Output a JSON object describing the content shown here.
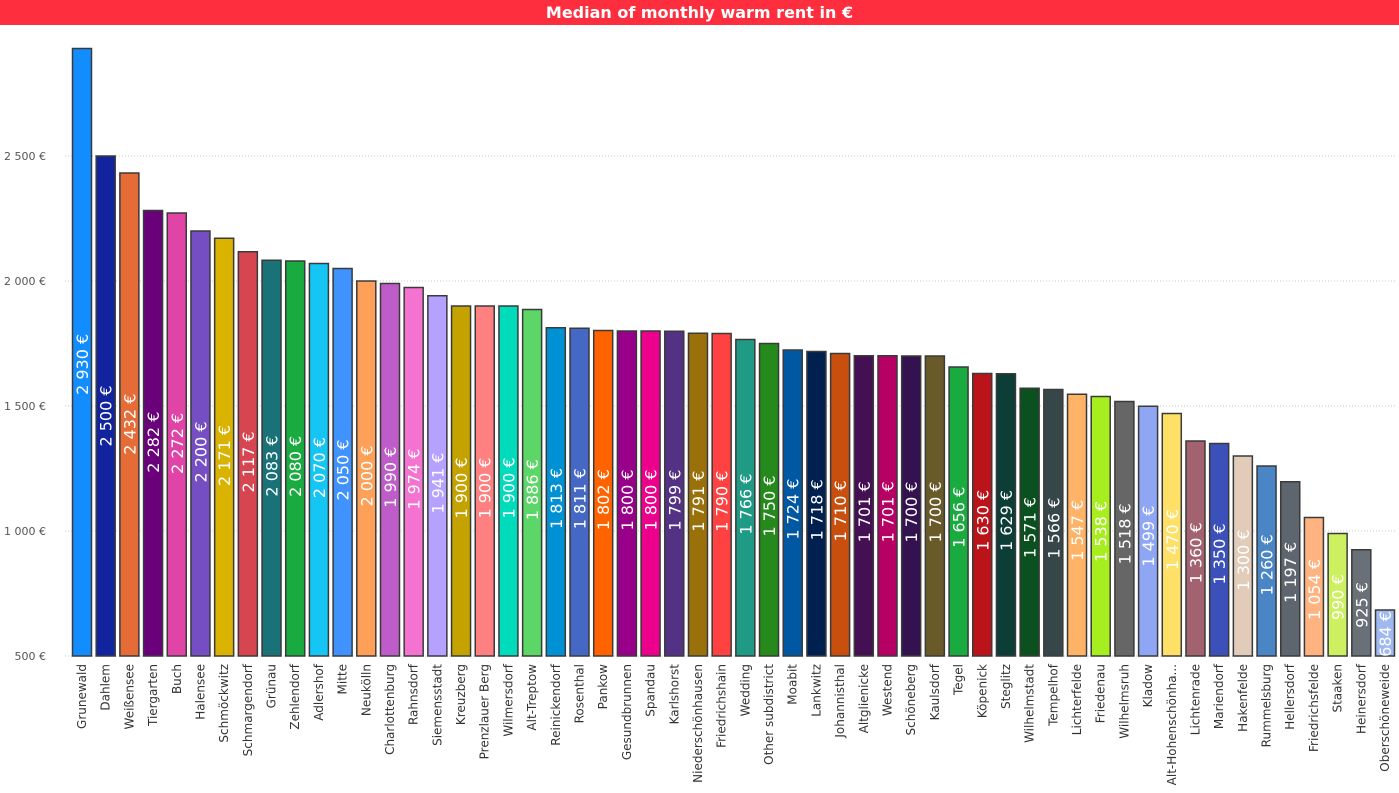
{
  "header": {
    "title": "Median of monthly warm rent in €"
  },
  "chart_data": {
    "type": "bar",
    "title": "Median of monthly warm rent in €",
    "xlabel": "",
    "ylabel": "",
    "ylim": [
      500,
      2980
    ],
    "yticks": [
      500,
      1000,
      1500,
      2000,
      2500
    ],
    "ytick_labels": [
      "500 €",
      "1 000 €",
      "1 500 €",
      "2 000 €",
      "2 500 €"
    ],
    "grid": true,
    "categories": [
      "Grunewald",
      "Dahlem",
      "Weißensee",
      "Tiergarten",
      "Buch",
      "Halensee",
      "Schmöckwitz",
      "Schmargendorf",
      "Grünau",
      "Zehlendorf",
      "Adlershof",
      "Mitte",
      "Neukölln",
      "Charlottenburg",
      "Rahnsdorf",
      "Siemensstadt",
      "Kreuzberg",
      "Prenzlauer Berg",
      "Wilmersdorf",
      "Alt-Treptow",
      "Reinickendorf",
      "Rosenthal",
      "Pankow",
      "Gesundbrunnen",
      "Spandau",
      "Karlshorst",
      "Niederschönhausen",
      "Friedrichshain",
      "Wedding",
      "Other subdistrict",
      "Moabit",
      "Lankwitz",
      "Johannisthal",
      "Altglienicke",
      "Westend",
      "Schöneberg",
      "Kaulsdorf",
      "Tegel",
      "Köpenick",
      "Steglitz",
      "Wilhelmstadt",
      "Tempelhof",
      "Lichterfelde",
      "Friedenau",
      "Wilhelmsruh",
      "Kladow",
      "Alt-Hohenschönha...",
      "Lichtenrade",
      "Mariendorf",
      "Hakenfelde",
      "Rummelsburg",
      "Hellersdorf",
      "Friedrichsfelde",
      "Staaken",
      "Heinersdorf",
      "Oberschöneweide"
    ],
    "values": [
      2930,
      2500,
      2432,
      2282,
      2272,
      2200,
      2171,
      2117,
      2083,
      2080,
      2070,
      2050,
      2000,
      1990,
      1974,
      1941,
      1900,
      1900,
      1900,
      1886,
      1813,
      1811,
      1802,
      1800,
      1800,
      1799,
      1791,
      1790,
      1766,
      1750,
      1724,
      1718,
      1710,
      1701,
      1701,
      1700,
      1700,
      1656,
      1630,
      1629,
      1571,
      1566,
      1547,
      1538,
      1518,
      1499,
      1470,
      1360,
      1350,
      1300,
      1260,
      1197,
      1054,
      990,
      925,
      684
    ],
    "value_labels": [
      "2 930 €",
      "2 500 €",
      "2 432 €",
      "2 282 €",
      "2 272 €",
      "2 200 €",
      "2 171 €",
      "2 117 €",
      "2 083 €",
      "2 080 €",
      "2 070 €",
      "2 050 €",
      "2 000 €",
      "1 990 €",
      "1 974 €",
      "1 941 €",
      "1 900 €",
      "1 900 €",
      "1 900 €",
      "1 886 €",
      "1 813 €",
      "1 811 €",
      "1 802 €",
      "1 800 €",
      "1 800 €",
      "1 799 €",
      "1 791 €",
      "1 790 €",
      "1 766 €",
      "1 750 €",
      "1 724 €",
      "1 718 €",
      "1 710 €",
      "1 701 €",
      "1 701 €",
      "1 700 €",
      "1 700 €",
      "1 656 €",
      "1 630 €",
      "1 629 €",
      "1 571 €",
      "1 566 €",
      "1 547 €",
      "1 538 €",
      "1 518 €",
      "1 499 €",
      "1 470 €",
      "1 360 €",
      "1 350 €",
      "1 300 €",
      "1 260 €",
      "1 197 €",
      "1 054 €",
      "990 €",
      "925 €",
      "684 €"
    ],
    "colors": [
      "#118DFF",
      "#12239E",
      "#E66C37",
      "#6B007B",
      "#E044A7",
      "#744EC2",
      "#D9B300",
      "#D64550",
      "#197278",
      "#1AAB40",
      "#15C6F4",
      "#4092FF",
      "#FFA058",
      "#BE5DC9",
      "#F472D0",
      "#B5A1FF",
      "#C4A200",
      "#FF8080",
      "#00DBBC",
      "#5BD667",
      "#0091D5",
      "#4668C5",
      "#FF6300",
      "#99008A",
      "#EC008C",
      "#533285",
      "#99700A",
      "#FF4141",
      "#1F9A85",
      "#25891C",
      "#0057A2",
      "#002050",
      "#C94F0F",
      "#450F54",
      "#B60064",
      "#34124F",
      "#6A5A29",
      "#1AAB40",
      "#BA141A",
      "#0C3D37",
      "#0B511F",
      "#374649",
      "#FFB366",
      "#A6EE1E",
      "#666666",
      "#8FA6F5",
      "#FFE066",
      "#A3626F",
      "#3B50B8",
      "#E0CCB8",
      "#4A86C6",
      "#5D656E",
      "#FFB380",
      "#CCF060",
      "#6A7078",
      "#A0B8F0"
    ],
    "label_colors": [
      "#ffffff",
      "#ffffff",
      "#ffffff",
      "#ffffff",
      "#ffffff",
      "#ffffff",
      "#ffffff",
      "#ffffff",
      "#ffffff",
      "#ffffff",
      "#ffffff",
      "#ffffff",
      "#ffffff",
      "#ffffff",
      "#ffffff",
      "#ffffff",
      "#ffffff",
      "#ffffff",
      "#ffffff",
      "#ffffff",
      "#ffffff",
      "#ffffff",
      "#ffffff",
      "#ffffff",
      "#ffffff",
      "#ffffff",
      "#ffffff",
      "#ffffff",
      "#ffffff",
      "#ffffff",
      "#ffffff",
      "#ffffff",
      "#ffffff",
      "#ffffff",
      "#ffffff",
      "#ffffff",
      "#ffffff",
      "#ffffff",
      "#ffffff",
      "#ffffff",
      "#ffffff",
      "#ffffff",
      "#ffffff",
      "#ffffff",
      "#ffffff",
      "#ffffff",
      "#ffffff",
      "#ffffff",
      "#ffffff",
      "#ffffff",
      "#ffffff",
      "#ffffff",
      "#ffffff",
      "#ffffff",
      "#ffffff",
      "#ffffff"
    ]
  }
}
